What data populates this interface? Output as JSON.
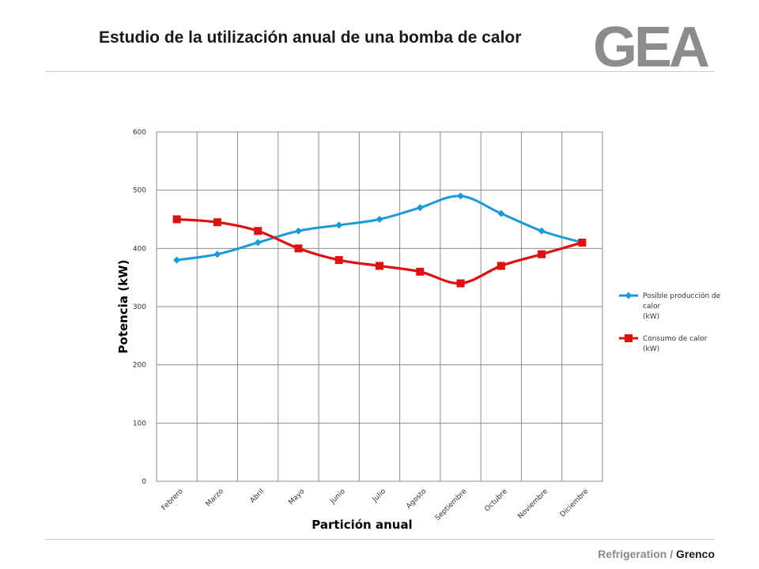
{
  "header": {
    "title": "Estudio de la utilización anual de una bomba de calor",
    "logo_text": "GEA"
  },
  "footer": {
    "division": "Refrigeration",
    "separator": "/",
    "org": "Grenco"
  },
  "colors": {
    "series_blue": "#1a9ad6",
    "series_red": "#e01010",
    "logo_gray": "#8c8c8c",
    "grid": "#8c8c8c"
  },
  "chart_data": {
    "type": "line",
    "title": "",
    "xlabel": "Partición anual",
    "ylabel": "Potencia (kW)",
    "ylim": [
      0,
      600
    ],
    "yticks": [
      0,
      100,
      200,
      300,
      400,
      500,
      600
    ],
    "grid": true,
    "legend_position": "right",
    "categories": [
      "Febrero",
      "Marzo",
      "Abril",
      "Mayo",
      "Junio",
      "Julio",
      "Agosto",
      "Septiembre",
      "Octubre",
      "Noviembre",
      "Diciembre"
    ],
    "series": [
      {
        "name_lines": [
          "Posible producción de",
          "calor",
          "(kW)"
        ],
        "marker": "diamond",
        "color": "#1a9ad6",
        "values": [
          380,
          390,
          410,
          430,
          440,
          450,
          470,
          490,
          460,
          430,
          410
        ]
      },
      {
        "name_lines": [
          "Consumo de calor",
          "(kW)"
        ],
        "marker": "square",
        "color": "#e01010",
        "values": [
          450,
          445,
          430,
          400,
          380,
          370,
          360,
          340,
          370,
          390,
          410
        ]
      }
    ]
  }
}
